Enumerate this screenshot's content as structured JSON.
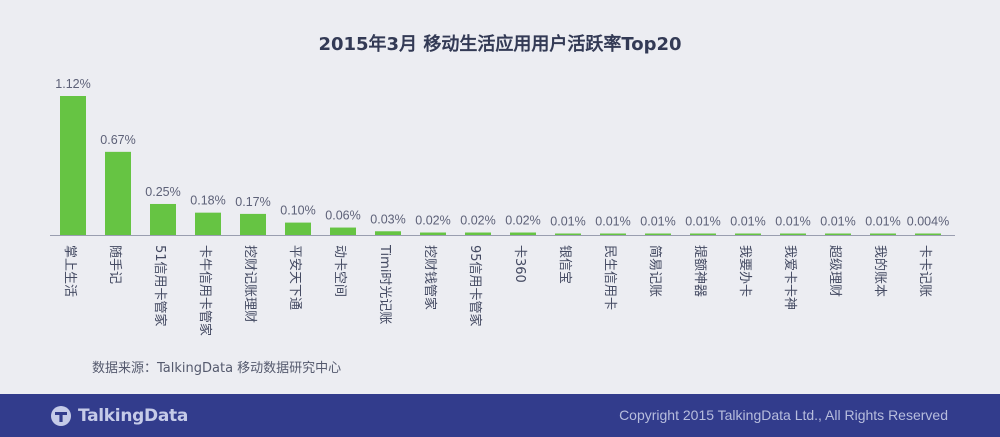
{
  "chart_data": {
    "type": "bar",
    "title": "2015年3月 移动生活应用用户活跃率Top20",
    "categories": [
      "掌上生活",
      "随手记",
      "51信用卡管家",
      "卡牛信用卡管家",
      "挖财记账理财",
      "平安天下通",
      "动卡空间",
      "Timi时光记账",
      "挖财钱管家",
      "95信用卡管家",
      "卡360",
      "银信宝",
      "民生信用卡",
      "简易记账",
      "提额神器",
      "我要办卡",
      "我爱卡卡神",
      "超级理财",
      "我的账本",
      "卡卡记账"
    ],
    "values": [
      1.12,
      0.67,
      0.25,
      0.18,
      0.17,
      0.1,
      0.06,
      0.03,
      0.02,
      0.02,
      0.02,
      0.01,
      0.01,
      0.01,
      0.01,
      0.01,
      0.01,
      0.01,
      0.01,
      0.004
    ],
    "data_labels": [
      "1.12%",
      "0.67%",
      "0.25%",
      "0.18%",
      "0.17%",
      "0.10%",
      "0.06%",
      "0.03%",
      "0.02%",
      "0.02%",
      "0.02%",
      "0.01%",
      "0.01%",
      "0.01%",
      "0.01%",
      "0.01%",
      "0.01%",
      "0.01%",
      "0.01%",
      "0.004%"
    ],
    "ylim": [
      0,
      1.12
    ],
    "grid": false,
    "bar_color": "#66c443"
  },
  "source_text": "数据来源：TalkingData 移动数据研究中心",
  "footer": {
    "logo_text": "TalkingData",
    "copyright": "Copyright 2015 TalkingData Ltd., All Rights Reserved",
    "background_color": "#323c8c"
  }
}
